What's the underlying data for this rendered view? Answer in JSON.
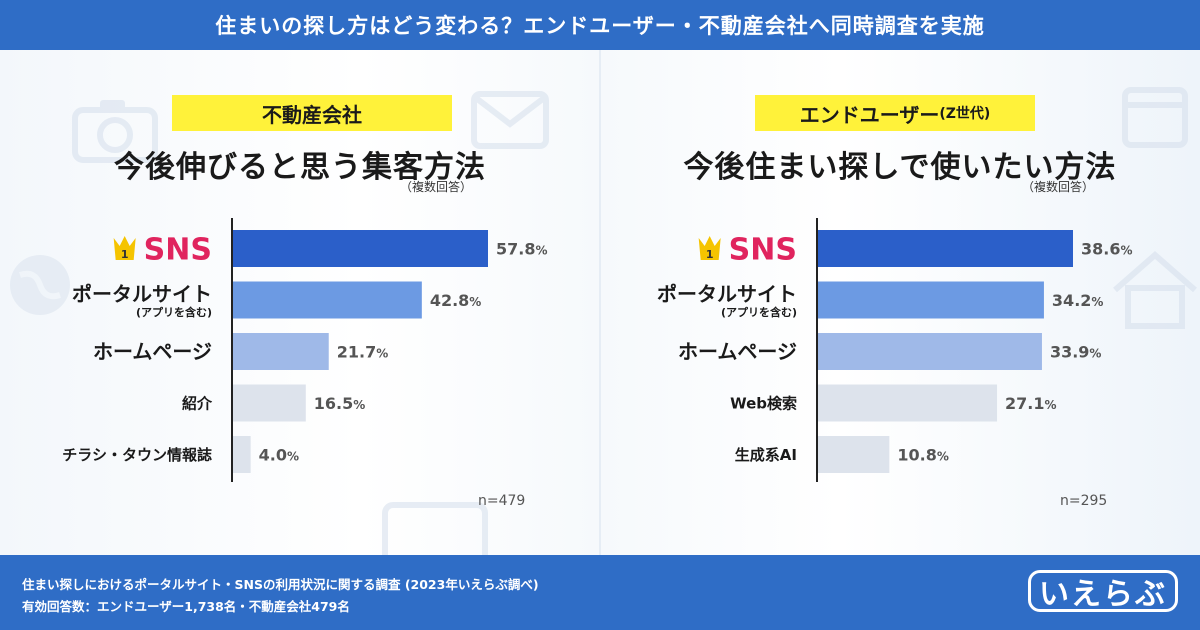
{
  "banner": {
    "title": "住まいの探し方はどう変わる？エンドユーザー・不動産会社へ同時調査を実施"
  },
  "colors": {
    "banner": "#2f6dc6",
    "highlight": "#fff23a",
    "rank1_text": "#e0245e",
    "crown": "#f5c400",
    "bars": [
      "#2b5fc9",
      "#6c9ae3",
      "#9fb9e8",
      "#dde3ec",
      "#dde3ec"
    ]
  },
  "icons": [
    "crown-icon"
  ],
  "footer": {
    "line1": "住まい探しにおけるポータルサイト・SNSの利用状況に関する調査 (2023年いえらぶ調べ)",
    "line2": "有効回答数：エンドユーザー1,738名・不動産会社479名",
    "logo": "いえらぶ"
  },
  "chart_data": [
    {
      "type": "bar",
      "orientation": "horizontal",
      "tag": "不動産会社",
      "tag_suffix": "",
      "title": "今後伸びると思う集客方法",
      "note": "（複数回答）",
      "n": "n=479",
      "rank1_badge": "1",
      "unit": "%",
      "categories": [
        {
          "label": "SNS",
          "sub": ""
        },
        {
          "label": "ポータルサイト",
          "sub": "(アプリを含む)"
        },
        {
          "label": "ホームページ",
          "sub": ""
        },
        {
          "label": "紹介",
          "sub": ""
        },
        {
          "label": "チラシ・タウン情報誌",
          "sub": ""
        }
      ],
      "values": [
        57.8,
        42.8,
        21.7,
        16.5,
        4.0
      ],
      "xlim": [
        0,
        75
      ]
    },
    {
      "type": "bar",
      "orientation": "horizontal",
      "tag": "エンドユーザー",
      "tag_suffix": "(Z世代)",
      "title": "今後住まい探しで使いたい方法",
      "note": "（複数回答）",
      "n": "n=295",
      "rank1_badge": "1",
      "unit": "%",
      "categories": [
        {
          "label": "SNS",
          "sub": ""
        },
        {
          "label": "ポータルサイト",
          "sub": "(アプリを含む)"
        },
        {
          "label": "ホームページ",
          "sub": ""
        },
        {
          "label": "Web検索",
          "sub": ""
        },
        {
          "label": "生成系AI",
          "sub": ""
        }
      ],
      "values": [
        38.6,
        34.2,
        33.9,
        27.1,
        10.8
      ],
      "xlim": [
        0,
        45
      ]
    }
  ]
}
